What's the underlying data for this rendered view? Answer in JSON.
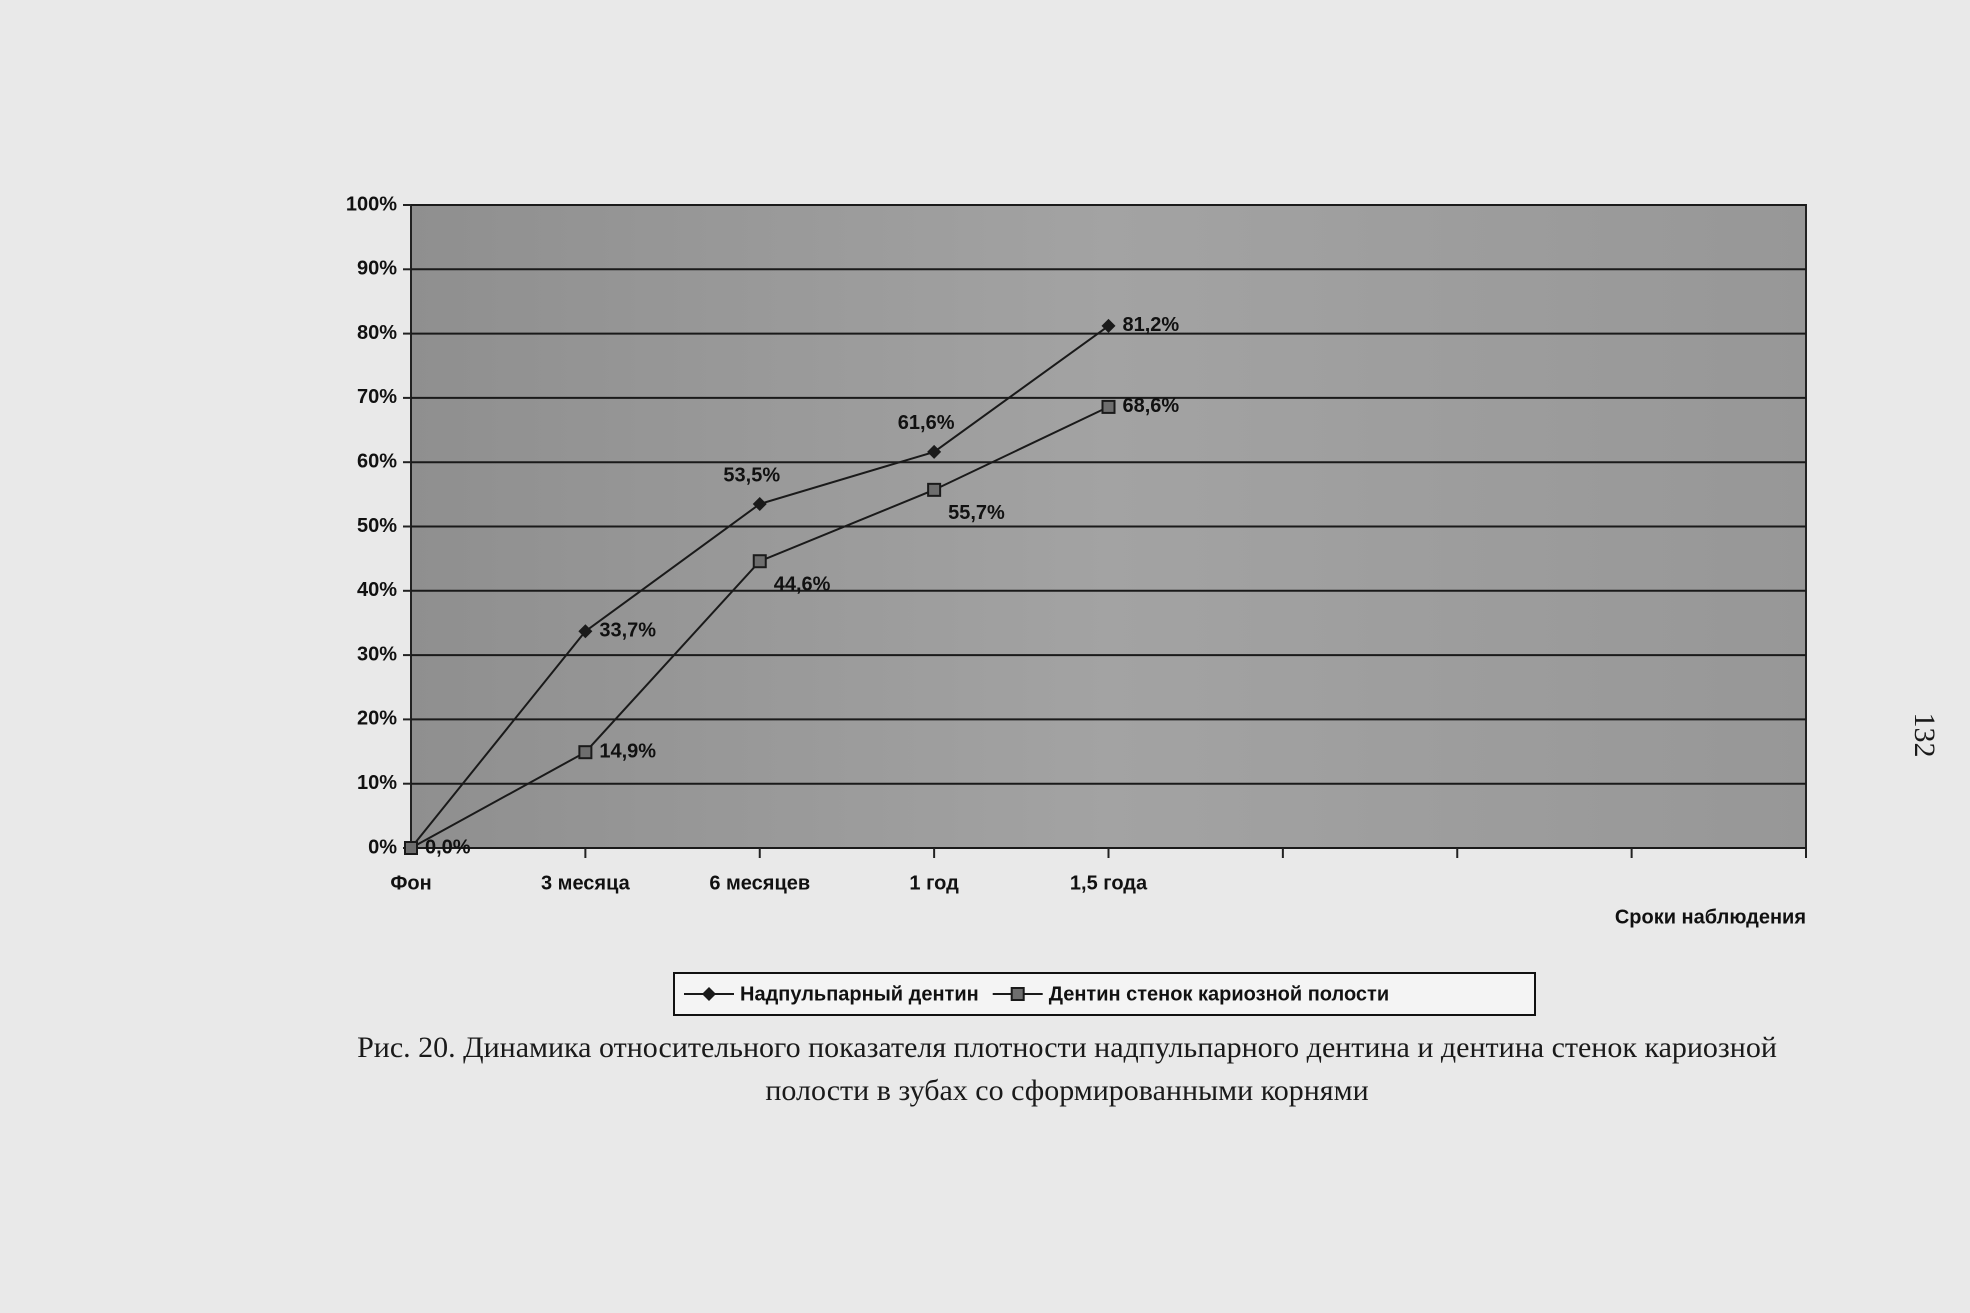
{
  "chart_data": {
    "type": "line",
    "categories": [
      "Фон",
      "3 месяца",
      "6 месяцев",
      "1 год",
      "1,5 года",
      null,
      null,
      null
    ],
    "series": [
      {
        "name": "Надпульпарный дентин",
        "color": "#1a1a1a",
        "marker": "diamond",
        "values": [
          0,
          33.7,
          53.5,
          61.6,
          81.2,
          null,
          null,
          null
        ],
        "value_labels": [
          null,
          "33,7%",
          "53,5%",
          "61,6%",
          "81,2%",
          null,
          null,
          null
        ]
      },
      {
        "name": "Дентин стенок кариозной полости",
        "color": "#1a1a1a",
        "marker": "square",
        "values": [
          0,
          14.9,
          44.6,
          55.7,
          68.6,
          null,
          null,
          null
        ],
        "value_labels": [
          "0,0%",
          "14,9%",
          "44,6%",
          "55,7%",
          "68,6%",
          null,
          null,
          null
        ]
      }
    ],
    "ylim": [
      0,
      100
    ],
    "yticks": [
      {
        "value": 0,
        "label": "0%"
      },
      {
        "value": 10,
        "label": "10%"
      },
      {
        "value": 20,
        "label": "20%"
      },
      {
        "value": 30,
        "label": "30%"
      },
      {
        "value": 40,
        "label": "40%"
      },
      {
        "value": 50,
        "label": "50%"
      },
      {
        "value": 60,
        "label": "60%"
      },
      {
        "value": 70,
        "label": "70%"
      },
      {
        "value": 80,
        "label": "80%"
      },
      {
        "value": 90,
        "label": "90%"
      },
      {
        "value": 100,
        "label": "100%"
      }
    ],
    "grid": true,
    "x_label": "Сроки наблюдения",
    "legend": "bottom",
    "caption": [
      "Рис. 20. Динамика относительного показателя плотности надпульпарного дентина и дентина стенок кариозной",
      "полости в зубах со сформированными корнями"
    ],
    "page_number": "132"
  }
}
